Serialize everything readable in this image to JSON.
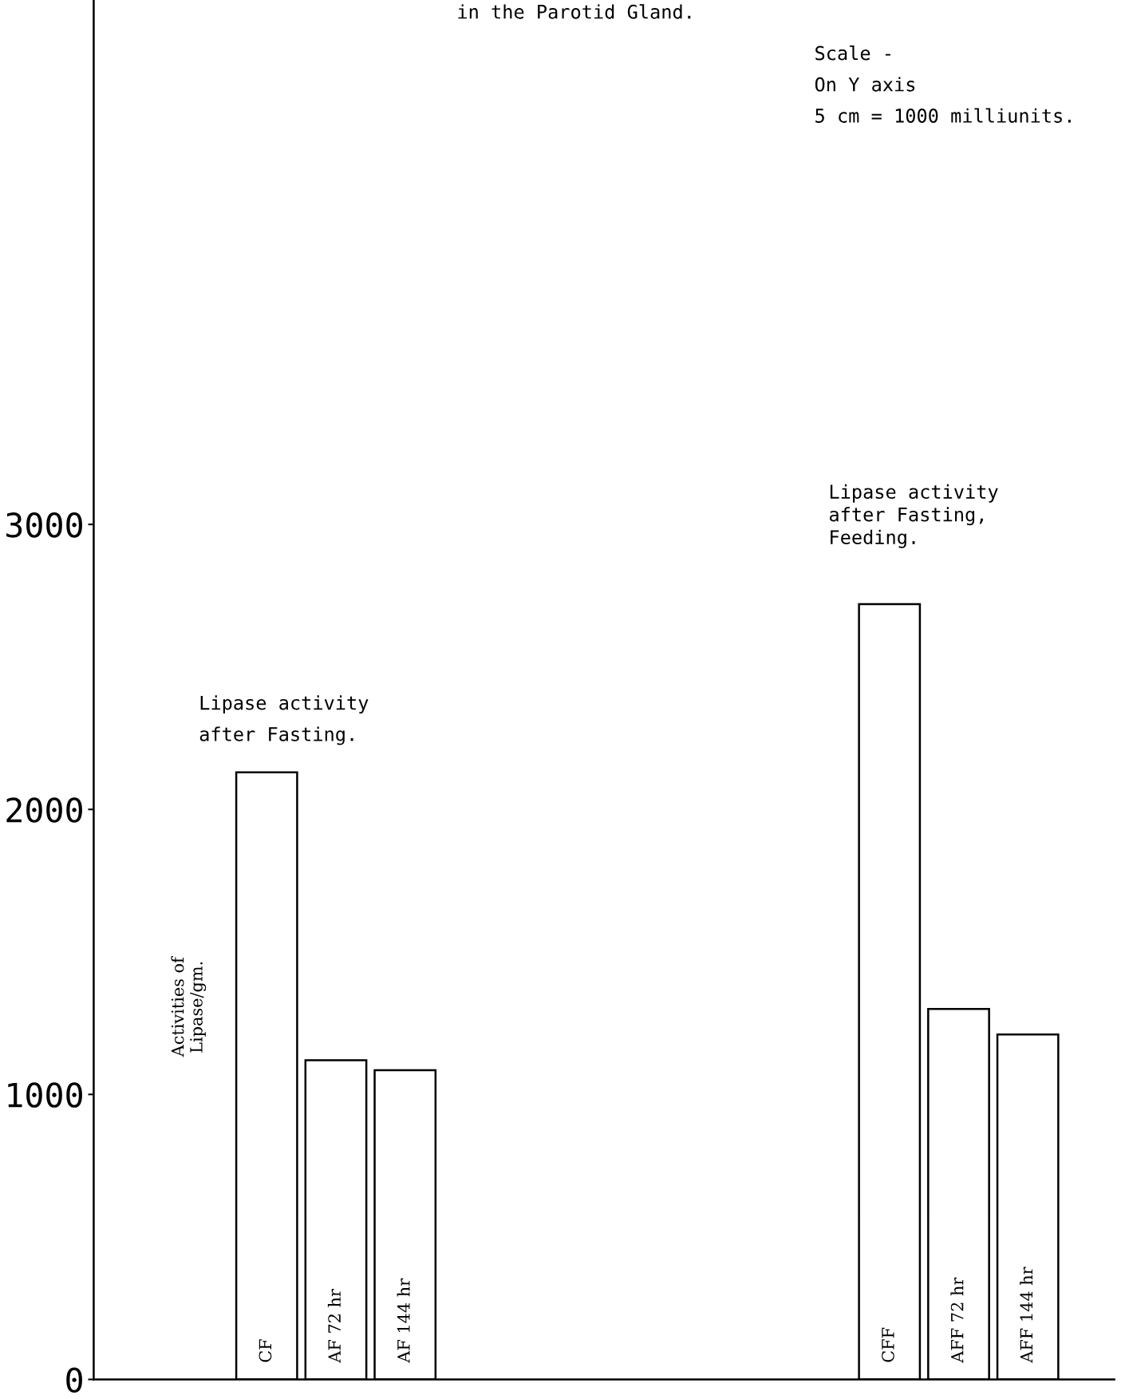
{
  "chart_data": {
    "type": "bar",
    "title": "in the Parotid Gland.",
    "categories": [
      "CF",
      "AF 72 hr",
      "AF 144 hr",
      null,
      null,
      null,
      null,
      null,
      null,
      "CFF",
      "AFF 72 hr",
      "AFF 144 hr"
    ],
    "values": [
      2130,
      1120,
      1085,
      null,
      null,
      null,
      null,
      null,
      null,
      2720,
      1300,
      1210
    ],
    "color": "#ffffff",
    "ylabel": "Activities of\nLipase/gm.",
    "ylim": [
      0,
      4840
    ],
    "yticks": [
      0,
      1000,
      2000,
      3000
    ],
    "annotations": [
      "Lipase activity\nafter Fasting.",
      "Lipase activity\nafter Fasting,\nFeeding.",
      "Scale -\nOn Y axis\n5 cm = 1000 milliunits."
    ],
    "grid": false,
    "legend": false
  }
}
